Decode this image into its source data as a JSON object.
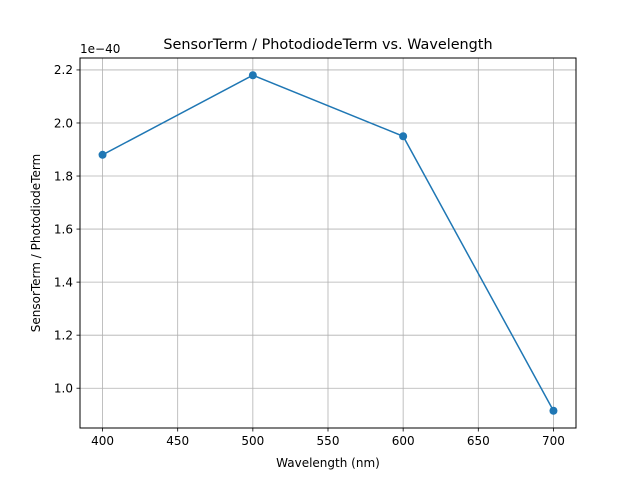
{
  "chart_data": {
    "type": "line",
    "title": "SensorTerm / PhotodiodeTerm vs. Wavelength",
    "xlabel": "Wavelength (nm)",
    "ylabel": "SensorTerm / PhotodiodeTerm",
    "y_offset_text": "1e−40",
    "x": [
      400,
      500,
      600,
      700
    ],
    "series": [
      {
        "values": [
          1.88,
          2.18,
          1.95,
          0.915
        ]
      }
    ],
    "xlim": [
      385,
      715
    ],
    "ylim": [
      0.85,
      2.245
    ],
    "x_ticks": [
      400,
      450,
      500,
      550,
      600,
      650,
      700
    ],
    "x_tick_labels": [
      "400",
      "450",
      "500",
      "550",
      "600",
      "650",
      "700"
    ],
    "y_ticks": [
      1.0,
      1.2,
      1.4,
      1.6,
      1.8,
      2.0,
      2.2
    ],
    "y_tick_labels": [
      "1.0",
      "1.2",
      "1.4",
      "1.6",
      "1.8",
      "2.0",
      "2.2"
    ],
    "grid": true,
    "marker": "circle",
    "colors": {
      "line": "#1f77b4",
      "grid": "#b0b0b0",
      "axis": "#000000"
    }
  }
}
